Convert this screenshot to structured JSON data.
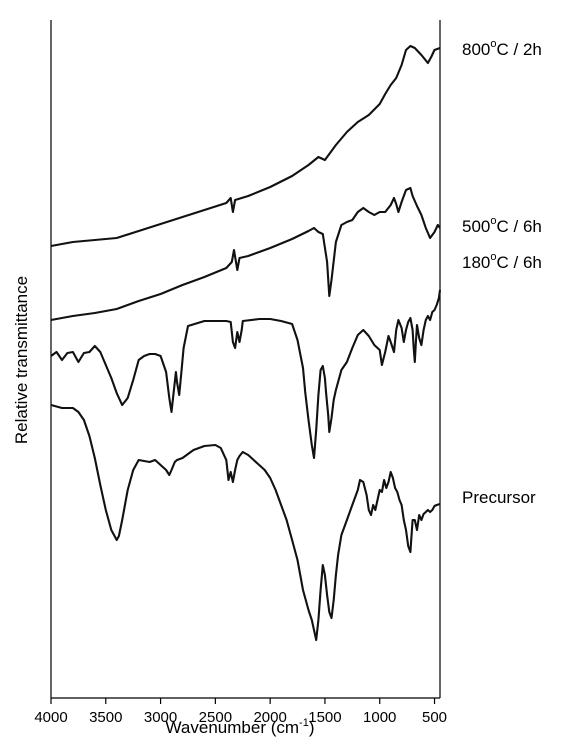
{
  "chart_data": {
    "type": "line",
    "title": "",
    "xlabel": "Wavenumber (cm",
    "xlabel_sup": "-1",
    "xlabel_close": ")",
    "ylabel": "Relative transmittance",
    "xlim": [
      4000,
      450
    ],
    "x_reversed": true,
    "y_ticks_shown": false,
    "grid": false,
    "x_ticks": [
      4000,
      3500,
      3000,
      2500,
      2000,
      1500,
      1000,
      500
    ],
    "tick_labels": [
      "4000",
      "3500",
      "3000",
      "2500",
      "2000",
      "1500",
      "1000",
      "500"
    ],
    "series": [
      {
        "name": "800°C / 2h",
        "label_parts": [
          "800",
          "o",
          "C / 2h"
        ],
        "points": [
          [
            4000,
            246
          ],
          [
            3800,
            242
          ],
          [
            3600,
            240
          ],
          [
            3400,
            238
          ],
          [
            3200,
            231
          ],
          [
            3000,
            224
          ],
          [
            2800,
            217
          ],
          [
            2600,
            210
          ],
          [
            2400,
            203
          ],
          [
            2360,
            198
          ],
          [
            2340,
            212
          ],
          [
            2320,
            200
          ],
          [
            2200,
            196
          ],
          [
            2000,
            187
          ],
          [
            1800,
            176
          ],
          [
            1650,
            165
          ],
          [
            1560,
            157
          ],
          [
            1500,
            160
          ],
          [
            1460,
            154
          ],
          [
            1400,
            145
          ],
          [
            1300,
            132
          ],
          [
            1200,
            122
          ],
          [
            1100,
            115
          ],
          [
            1000,
            104
          ],
          [
            950,
            94
          ],
          [
            900,
            85
          ],
          [
            850,
            78
          ],
          [
            800,
            65
          ],
          [
            760,
            50
          ],
          [
            720,
            46
          ],
          [
            680,
            48
          ],
          [
            620,
            55
          ],
          [
            560,
            63
          ],
          [
            530,
            57
          ],
          [
            500,
            50
          ],
          [
            450,
            48
          ]
        ]
      },
      {
        "name": "500°C / 6h",
        "label_parts": [
          "500",
          "o",
          "C / 6h"
        ],
        "points": [
          [
            4000,
            320
          ],
          [
            3800,
            316
          ],
          [
            3600,
            313
          ],
          [
            3400,
            309
          ],
          [
            3200,
            301
          ],
          [
            3000,
            294
          ],
          [
            2800,
            285
          ],
          [
            2600,
            277
          ],
          [
            2400,
            268
          ],
          [
            2350,
            262
          ],
          [
            2330,
            250
          ],
          [
            2300,
            270
          ],
          [
            2280,
            258
          ],
          [
            2200,
            256
          ],
          [
            2000,
            248
          ],
          [
            1800,
            239
          ],
          [
            1650,
            231
          ],
          [
            1600,
            228
          ],
          [
            1560,
            232
          ],
          [
            1520,
            234
          ],
          [
            1480,
            262
          ],
          [
            1460,
            296
          ],
          [
            1440,
            280
          ],
          [
            1400,
            242
          ],
          [
            1350,
            225
          ],
          [
            1300,
            222
          ],
          [
            1250,
            220
          ],
          [
            1200,
            212
          ],
          [
            1150,
            208
          ],
          [
            1100,
            212
          ],
          [
            1050,
            215
          ],
          [
            1000,
            212
          ],
          [
            950,
            212
          ],
          [
            900,
            205
          ],
          [
            870,
            198
          ],
          [
            850,
            204
          ],
          [
            830,
            212
          ],
          [
            800,
            202
          ],
          [
            760,
            190
          ],
          [
            720,
            188
          ],
          [
            700,
            196
          ],
          [
            660,
            206
          ],
          [
            620,
            215
          ],
          [
            580,
            228
          ],
          [
            540,
            238
          ],
          [
            500,
            232
          ],
          [
            470,
            225
          ],
          [
            450,
            228
          ]
        ]
      },
      {
        "name": "180°C / 6h",
        "label_parts": [
          "180",
          "o",
          "C / 6h"
        ],
        "points": [
          [
            4000,
            356
          ],
          [
            3950,
            352
          ],
          [
            3900,
            360
          ],
          [
            3850,
            353
          ],
          [
            3800,
            352
          ],
          [
            3750,
            362
          ],
          [
            3700,
            353
          ],
          [
            3650,
            352
          ],
          [
            3600,
            346
          ],
          [
            3550,
            352
          ],
          [
            3500,
            365
          ],
          [
            3450,
            378
          ],
          [
            3400,
            393
          ],
          [
            3350,
            405
          ],
          [
            3300,
            398
          ],
          [
            3250,
            380
          ],
          [
            3200,
            360
          ],
          [
            3150,
            356
          ],
          [
            3100,
            354
          ],
          [
            3050,
            354
          ],
          [
            3000,
            356
          ],
          [
            2950,
            372
          ],
          [
            2920,
            398
          ],
          [
            2900,
            412
          ],
          [
            2880,
            392
          ],
          [
            2860,
            372
          ],
          [
            2850,
            382
          ],
          [
            2830,
            395
          ],
          [
            2810,
            372
          ],
          [
            2790,
            348
          ],
          [
            2750,
            326
          ],
          [
            2600,
            321
          ],
          [
            2500,
            321
          ],
          [
            2400,
            321
          ],
          [
            2360,
            322
          ],
          [
            2340,
            342
          ],
          [
            2320,
            348
          ],
          [
            2300,
            332
          ],
          [
            2280,
            342
          ],
          [
            2260,
            330
          ],
          [
            2250,
            321
          ],
          [
            2100,
            319
          ],
          [
            2000,
            319
          ],
          [
            1900,
            321
          ],
          [
            1800,
            324
          ],
          [
            1750,
            340
          ],
          [
            1700,
            368
          ],
          [
            1680,
            392
          ],
          [
            1650,
            420
          ],
          [
            1620,
            445
          ],
          [
            1600,
            458
          ],
          [
            1580,
            430
          ],
          [
            1560,
            395
          ],
          [
            1540,
            370
          ],
          [
            1520,
            366
          ],
          [
            1500,
            378
          ],
          [
            1490,
            392
          ],
          [
            1470,
            415
          ],
          [
            1460,
            432
          ],
          [
            1440,
            418
          ],
          [
            1420,
            400
          ],
          [
            1400,
            390
          ],
          [
            1350,
            370
          ],
          [
            1300,
            362
          ],
          [
            1250,
            348
          ],
          [
            1200,
            335
          ],
          [
            1150,
            330
          ],
          [
            1100,
            336
          ],
          [
            1050,
            345
          ],
          [
            1000,
            350
          ],
          [
            980,
            365
          ],
          [
            950,
            352
          ],
          [
            920,
            336
          ],
          [
            900,
            342
          ],
          [
            870,
            352
          ],
          [
            850,
            330
          ],
          [
            830,
            320
          ],
          [
            800,
            328
          ],
          [
            780,
            342
          ],
          [
            760,
            330
          ],
          [
            740,
            322
          ],
          [
            720,
            318
          ],
          [
            700,
            330
          ],
          [
            690,
            348
          ],
          [
            680,
            362
          ],
          [
            670,
            342
          ],
          [
            660,
            325
          ],
          [
            640,
            338
          ],
          [
            620,
            345
          ],
          [
            600,
            330
          ],
          [
            580,
            320
          ],
          [
            560,
            316
          ],
          [
            540,
            320
          ],
          [
            520,
            312
          ],
          [
            500,
            310
          ],
          [
            480,
            305
          ],
          [
            460,
            298
          ],
          [
            450,
            290
          ]
        ]
      },
      {
        "name": "Precursor",
        "label_parts": [
          "Precursor",
          "",
          ""
        ],
        "points": [
          [
            4000,
            405
          ],
          [
            3900,
            408
          ],
          [
            3800,
            408
          ],
          [
            3750,
            412
          ],
          [
            3700,
            420
          ],
          [
            3650,
            436
          ],
          [
            3600,
            458
          ],
          [
            3550,
            485
          ],
          [
            3500,
            510
          ],
          [
            3450,
            530
          ],
          [
            3400,
            540
          ],
          [
            3380,
            536
          ],
          [
            3350,
            520
          ],
          [
            3300,
            490
          ],
          [
            3250,
            470
          ],
          [
            3200,
            460
          ],
          [
            3100,
            462
          ],
          [
            3050,
            460
          ],
          [
            3000,
            465
          ],
          [
            2950,
            470
          ],
          [
            2920,
            475
          ],
          [
            2900,
            470
          ],
          [
            2870,
            462
          ],
          [
            2850,
            460
          ],
          [
            2800,
            458
          ],
          [
            2700,
            450
          ],
          [
            2600,
            446
          ],
          [
            2500,
            445
          ],
          [
            2450,
            448
          ],
          [
            2400,
            460
          ],
          [
            2380,
            480
          ],
          [
            2360,
            472
          ],
          [
            2340,
            482
          ],
          [
            2320,
            470
          ],
          [
            2300,
            460
          ],
          [
            2280,
            456
          ],
          [
            2250,
            452
          ],
          [
            2200,
            455
          ],
          [
            2150,
            460
          ],
          [
            2100,
            465
          ],
          [
            2050,
            470
          ],
          [
            2000,
            478
          ],
          [
            1950,
            490
          ],
          [
            1900,
            505
          ],
          [
            1850,
            520
          ],
          [
            1800,
            540
          ],
          [
            1750,
            560
          ],
          [
            1700,
            590
          ],
          [
            1650,
            610
          ],
          [
            1620,
            620
          ],
          [
            1600,
            630
          ],
          [
            1580,
            640
          ],
          [
            1560,
            620
          ],
          [
            1540,
            590
          ],
          [
            1520,
            565
          ],
          [
            1500,
            575
          ],
          [
            1480,
            595
          ],
          [
            1460,
            612
          ],
          [
            1440,
            618
          ],
          [
            1420,
            600
          ],
          [
            1400,
            575
          ],
          [
            1380,
            555
          ],
          [
            1350,
            535
          ],
          [
            1300,
            520
          ],
          [
            1250,
            505
          ],
          [
            1200,
            490
          ],
          [
            1180,
            480
          ],
          [
            1150,
            482
          ],
          [
            1120,
            495
          ],
          [
            1100,
            510
          ],
          [
            1080,
            515
          ],
          [
            1060,
            505
          ],
          [
            1040,
            510
          ],
          [
            1020,
            500
          ],
          [
            1000,
            490
          ],
          [
            980,
            492
          ],
          [
            960,
            480
          ],
          [
            940,
            488
          ],
          [
            920,
            482
          ],
          [
            900,
            472
          ],
          [
            880,
            478
          ],
          [
            860,
            488
          ],
          [
            840,
            492
          ],
          [
            820,
            500
          ],
          [
            800,
            505
          ],
          [
            780,
            520
          ],
          [
            760,
            530
          ],
          [
            740,
            546
          ],
          [
            720,
            552
          ],
          [
            700,
            520
          ],
          [
            680,
            520
          ],
          [
            660,
            530
          ],
          [
            640,
            515
          ],
          [
            620,
            520
          ],
          [
            600,
            514
          ],
          [
            580,
            512
          ],
          [
            560,
            510
          ],
          [
            540,
            512
          ],
          [
            520,
            510
          ],
          [
            500,
            506
          ],
          [
            480,
            505
          ],
          [
            450,
            504
          ]
        ]
      }
    ]
  }
}
